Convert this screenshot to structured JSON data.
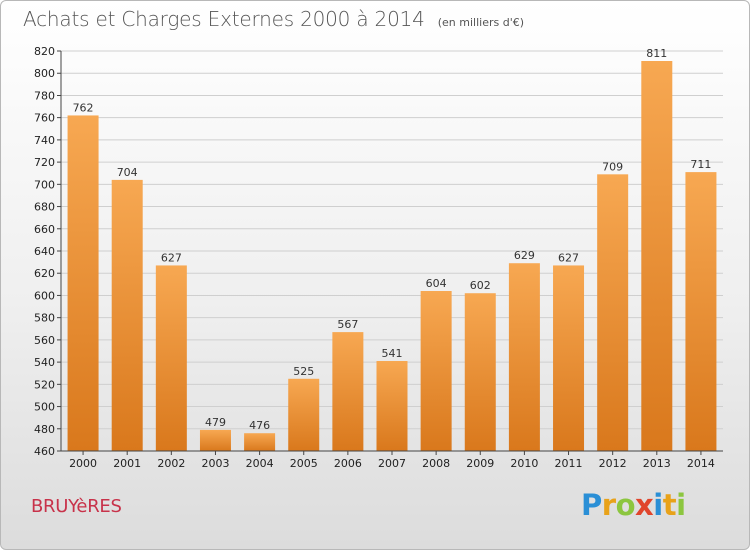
{
  "header": {
    "title": "Achats et Charges Externes 2000 à 2014",
    "unit": "(en milliers d'€)"
  },
  "footer": {
    "place": "BRUYèRES",
    "brand_letters": [
      {
        "char": "P",
        "color": "#2a8fd6"
      },
      {
        "char": "r",
        "color": "#e8a21a"
      },
      {
        "char": "o",
        "color": "#8cc63f"
      },
      {
        "char": "x",
        "color": "#e0452c"
      },
      {
        "char": "i",
        "color": "#2a8fd6"
      },
      {
        "char": "t",
        "color": "#e8a21a"
      },
      {
        "char": "i",
        "color": "#8cc63f"
      }
    ]
  },
  "colors": {
    "bar_top": "#f7a852",
    "bar_bottom": "#d9781c",
    "grid": "#cfcfcf",
    "axis": "#444444"
  },
  "chart_data": {
    "type": "bar",
    "title": "Achats et Charges Externes 2000 à 2014",
    "subtitle": "(en milliers d'€)",
    "xlabel": "",
    "ylabel": "",
    "categories": [
      "2000",
      "2001",
      "2002",
      "2003",
      "2004",
      "2005",
      "2006",
      "2007",
      "2008",
      "2009",
      "2010",
      "2011",
      "2012",
      "2013",
      "2014"
    ],
    "values": [
      762,
      704,
      627,
      479,
      476,
      525,
      567,
      541,
      604,
      602,
      629,
      627,
      709,
      811,
      711
    ],
    "ylim": [
      460,
      820
    ],
    "yticks": [
      460,
      480,
      500,
      520,
      540,
      560,
      580,
      600,
      620,
      640,
      660,
      680,
      700,
      720,
      740,
      760,
      780,
      800,
      820
    ],
    "grid": true,
    "legend": "none"
  }
}
